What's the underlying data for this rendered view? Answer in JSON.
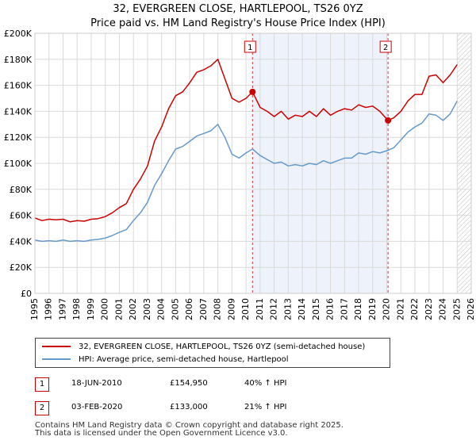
{
  "title_line1": "32, EVERGREEN CLOSE, HARTLEPOOL, TS26 0YZ",
  "title_line2": "Price paid vs. HM Land Registry's House Price Index (HPI)",
  "legend": {
    "property_label": "32, EVERGREEN CLOSE, HARTLEPOOL, TS26 0YZ (semi-detached house)",
    "hpi_label": "HPI: Average price, semi-detached house, Hartlepool"
  },
  "transactions": [
    {
      "num": "1",
      "date": "18-JUN-2010",
      "price": "£154,950",
      "hpi_change": "40% ↑ HPI"
    },
    {
      "num": "2",
      "date": "03-FEB-2020",
      "price": "£133,000",
      "hpi_change": "21% ↑ HPI"
    }
  ],
  "footer_line1": "Contains HM Land Registry data © Crown copyright and database right 2025.",
  "footer_line2": "This data is licensed under the Open Government Licence v3.0.",
  "colors": {
    "property": "#cc0000",
    "hpi": "#6699cc",
    "shade": "#eef2fb",
    "grid": "#d9d9d9"
  },
  "chart_data": {
    "type": "line",
    "title": "Price paid vs. HM Land Registry's House Price Index (HPI)",
    "xlim": [
      1995,
      2026
    ],
    "ylim": [
      0,
      200000
    ],
    "x_ticks": [
      1995,
      1996,
      1997,
      1998,
      1999,
      2000,
      2001,
      2002,
      2003,
      2004,
      2005,
      2006,
      2007,
      2008,
      2009,
      2010,
      2011,
      2012,
      2013,
      2014,
      2015,
      2016,
      2017,
      2018,
      2019,
      2020,
      2021,
      2022,
      2023,
      2024,
      2025,
      2026
    ],
    "y_ticks": [
      {
        "value": 0,
        "label": "£0"
      },
      {
        "value": 20000,
        "label": "£20K"
      },
      {
        "value": 40000,
        "label": "£40K"
      },
      {
        "value": 60000,
        "label": "£60K"
      },
      {
        "value": 80000,
        "label": "£80K"
      },
      {
        "value": 100000,
        "label": "£100K"
      },
      {
        "value": 120000,
        "label": "£120K"
      },
      {
        "value": 140000,
        "label": "£140K"
      },
      {
        "value": 160000,
        "label": "£160K"
      },
      {
        "value": 180000,
        "label": "£180K"
      },
      {
        "value": 200000,
        "label": "£200K"
      }
    ],
    "shaded_span": [
      2010.46,
      2020.09
    ],
    "hatched_from": 2025.0,
    "markers": [
      {
        "label": "1",
        "x": 2010.46,
        "y": 154950
      },
      {
        "label": "2",
        "x": 2020.09,
        "y": 133000
      }
    ],
    "series": [
      {
        "name": "32, EVERGREEN CLOSE, HARTLEPOOL, TS26 0YZ (semi-detached house)",
        "x": [
          1995.0,
          1995.5,
          1996.0,
          1996.5,
          1997.0,
          1997.5,
          1998.0,
          1998.5,
          1999.0,
          1999.5,
          2000.0,
          2000.5,
          2001.0,
          2001.5,
          2002.0,
          2002.5,
          2003.0,
          2003.5,
          2004.0,
          2004.5,
          2005.0,
          2005.5,
          2006.0,
          2006.5,
          2007.0,
          2007.5,
          2008.0,
          2008.5,
          2009.0,
          2009.5,
          2010.0,
          2010.46,
          2011.0,
          2011.5,
          2012.0,
          2012.5,
          2013.0,
          2013.5,
          2014.0,
          2014.5,
          2015.0,
          2015.5,
          2016.0,
          2016.5,
          2017.0,
          2017.5,
          2018.0,
          2018.5,
          2019.0,
          2019.5,
          2020.09,
          2020.5,
          2021.0,
          2021.5,
          2022.0,
          2022.5,
          2023.0,
          2023.5,
          2024.0,
          2024.5,
          2025.0
        ],
        "y": [
          58000,
          56000,
          57000,
          56500,
          57000,
          55000,
          56000,
          55500,
          57000,
          57500,
          59000,
          62000,
          66000,
          69000,
          80000,
          88000,
          98000,
          117000,
          128000,
          142000,
          152000,
          155000,
          162000,
          170000,
          172000,
          175000,
          180000,
          165000,
          150000,
          147000,
          150000,
          154950,
          143000,
          140000,
          136000,
          140000,
          134000,
          137000,
          136000,
          140000,
          136000,
          142000,
          137000,
          140000,
          142000,
          141000,
          145000,
          143000,
          144000,
          140000,
          133000,
          135000,
          140000,
          148000,
          153000,
          153000,
          167000,
          168000,
          162000,
          168000,
          176000
        ]
      },
      {
        "name": "HPI: Average price, semi-detached house, Hartlepool",
        "x": [
          1995.0,
          1995.5,
          1996.0,
          1996.5,
          1997.0,
          1997.5,
          1998.0,
          1998.5,
          1999.0,
          1999.5,
          2000.0,
          2000.5,
          2001.0,
          2001.5,
          2002.0,
          2002.5,
          2003.0,
          2003.5,
          2004.0,
          2004.5,
          2005.0,
          2005.5,
          2006.0,
          2006.5,
          2007.0,
          2007.5,
          2008.0,
          2008.5,
          2009.0,
          2009.5,
          2010.0,
          2010.46,
          2011.0,
          2011.5,
          2012.0,
          2012.5,
          2013.0,
          2013.5,
          2014.0,
          2014.5,
          2015.0,
          2015.5,
          2016.0,
          2016.5,
          2017.0,
          2017.5,
          2018.0,
          2018.5,
          2019.0,
          2019.5,
          2020.09,
          2020.5,
          2021.0,
          2021.5,
          2022.0,
          2022.5,
          2023.0,
          2023.5,
          2024.0,
          2024.5,
          2025.0
        ],
        "y": [
          41000,
          40000,
          40500,
          40000,
          41000,
          40000,
          40500,
          40000,
          41000,
          41500,
          42500,
          44500,
          47000,
          49000,
          56000,
          62000,
          70000,
          83000,
          92000,
          102000,
          111000,
          113000,
          117000,
          121000,
          123000,
          125000,
          130000,
          120000,
          107000,
          104000,
          108000,
          111000,
          106000,
          103000,
          100000,
          101000,
          98000,
          99000,
          98000,
          100000,
          99000,
          102000,
          100000,
          102000,
          104000,
          104000,
          108000,
          107000,
          109000,
          108000,
          110000,
          112000,
          118000,
          124000,
          128000,
          131000,
          138000,
          137000,
          133000,
          138000,
          148000
        ]
      }
    ]
  }
}
